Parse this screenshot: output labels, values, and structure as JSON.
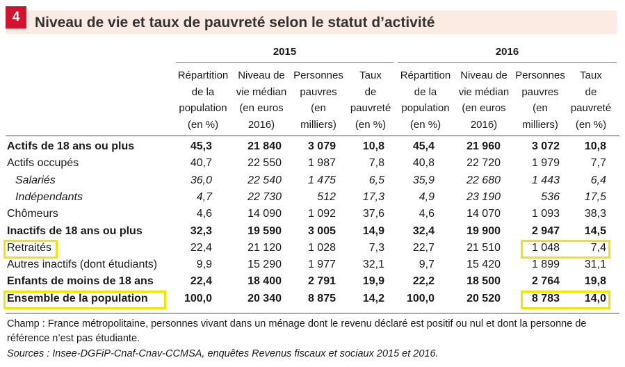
{
  "figure": {
    "number": "4",
    "title": "Niveau de vie et taux de pauvreté selon le statut d’activité"
  },
  "years": [
    "2015",
    "2016"
  ],
  "columns": [
    "Répartition\nde la\npopulation\n(en %)",
    "Niveau de\nvie médian\n(en euros\n2016)",
    "Personnes\npauvres\n(en\nmilliers)",
    "Taux\nde\npauvreté\n(en %)"
  ],
  "rows": [
    {
      "label": "Actifs de 18 ans ou plus",
      "style": "bold",
      "v2015": [
        "45,3",
        "21 840",
        "3 079",
        "10,8"
      ],
      "v2016": [
        "45,4",
        "21 960",
        "3 072",
        "10,8"
      ]
    },
    {
      "label": "Actifs occupés",
      "style": "normal",
      "v2015": [
        "40,7",
        "22 550",
        "1 987",
        "7,8"
      ],
      "v2016": [
        "40,8",
        "22 720",
        "1 979",
        "7,7"
      ]
    },
    {
      "label": "Salariés",
      "style": "italic",
      "v2015": [
        "36,0",
        "22 540",
        "1 475",
        "6,5"
      ],
      "v2016": [
        "35,9",
        "22 680",
        "1 443",
        "6,4"
      ]
    },
    {
      "label": "Indépendants",
      "style": "italic",
      "v2015": [
        "4,7",
        "22 730",
        "512",
        "17,3"
      ],
      "v2016": [
        "4,9",
        "23 190",
        "536",
        "17,5"
      ]
    },
    {
      "label": "Chômeurs",
      "style": "normal",
      "v2015": [
        "4,6",
        "14 090",
        "1 092",
        "37,6"
      ],
      "v2016": [
        "4,6",
        "14 070",
        "1 093",
        "38,3"
      ]
    },
    {
      "label": "Inactifs de 18 ans ou plus",
      "style": "bold",
      "v2015": [
        "32,3",
        "19 590",
        "3 005",
        "14,9"
      ],
      "v2016": [
        "32,4",
        "19 900",
        "2 947",
        "14,5"
      ]
    },
    {
      "label": "Retraités",
      "style": "normal",
      "v2015": [
        "22,4",
        "21 120",
        "1 028",
        "7,3"
      ],
      "v2016": [
        "22,7",
        "21 510",
        "1 048",
        "7,4"
      ]
    },
    {
      "label": "Autres inactifs (dont étudiants)",
      "style": "normal",
      "v2015": [
        "9,9",
        "15 290",
        "1 977",
        "32,1"
      ],
      "v2016": [
        "9,7",
        "15 420",
        "1 899",
        "31,1"
      ]
    },
    {
      "label": "Enfants de moins de 18 ans",
      "style": "bold",
      "v2015": [
        "22,4",
        "18 400",
        "2 791",
        "19,9"
      ],
      "v2016": [
        "22,2",
        "18 500",
        "2 764",
        "19,8"
      ]
    },
    {
      "label": "Ensemble de la  population",
      "style": "bold",
      "v2015": [
        "100,0",
        "20 340",
        "8 875",
        "14,2"
      ],
      "v2016": [
        "100,0",
        "20 520",
        "8 783",
        "14,0"
      ]
    }
  ],
  "notes": {
    "champ_line1": "Champ : France métropolitaine, personnes vivant dans un ménage dont le revenu déclaré est positif ou nul et dont la personne de",
    "champ_line2": "référence n’est pas étudiante.",
    "sources": "Sources : Insee-DGFiP-Cnaf-Cnav-CCMSA, enquêtes Revenus fiscaux et sociaux 2015 et 2016."
  },
  "highlight_color": "#f2e500",
  "accent_color": "#d2122e"
}
